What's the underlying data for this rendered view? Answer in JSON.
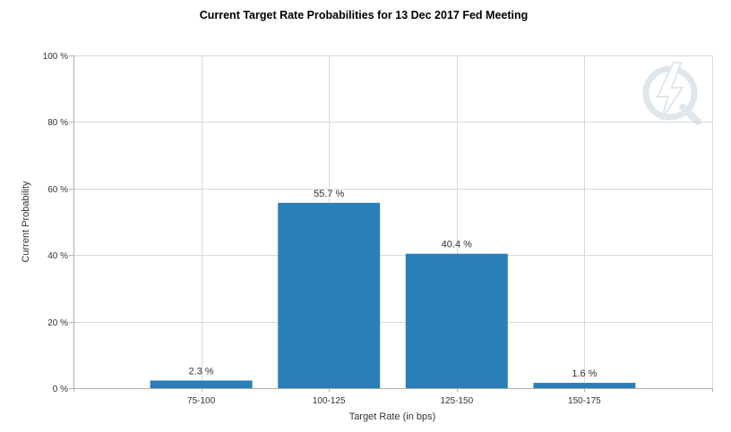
{
  "chart_data": {
    "type": "bar",
    "title": "Current Target Rate Probabilities for 13 Dec 2017 Fed Meeting",
    "xlabel": "Target Rate (in bps)",
    "ylabel": "Current Probability",
    "categories": [
      "75-100",
      "100-125",
      "125-150",
      "150-175"
    ],
    "values": [
      2.3,
      55.7,
      40.4,
      1.6
    ],
    "value_labels": [
      "2.3 %",
      "55.7 %",
      "40.4 %",
      "1.6 %"
    ],
    "ylim": [
      0,
      100
    ],
    "yticks": [
      0,
      20,
      40,
      60,
      80,
      100
    ],
    "ytick_labels": [
      "0 %",
      "20 %",
      "40 %",
      "60 %",
      "80 %",
      "100 %"
    ],
    "grid": true,
    "bar_color": "#2b7fb8",
    "watermark_icon": "lightning-q-logo"
  }
}
